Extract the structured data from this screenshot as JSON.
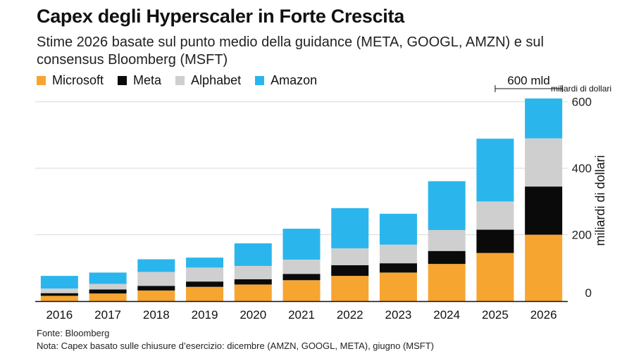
{
  "header": {
    "title": "Capex degli Hyperscaler in Forte Crescita",
    "subtitle": "Stime 2026 basate sul punto medio della guidance (META, GOOGL, AMZN) e sul consensus Bloomberg (MSFT)"
  },
  "footer": {
    "source": "Fonte: Bloomberg",
    "note": "Nota: Capex basato sulle chiusure d’esercizio: dicembre (AMZN, GOOGL, META), giugno (MSFT)"
  },
  "chart_data": {
    "type": "bar",
    "stacked": true,
    "categories": [
      "2016",
      "2017",
      "2018",
      "2019",
      "2020",
      "2021",
      "2022",
      "2023",
      "2024",
      "2025",
      "2026"
    ],
    "series": [
      {
        "name": "Microsoft",
        "color": "#f7a531",
        "values": [
          16,
          23,
          32,
          43,
          50,
          63,
          76,
          86,
          112,
          145,
          200
        ]
      },
      {
        "name": "Meta",
        "color": "#0a0a0a",
        "values": [
          8,
          12,
          14,
          16,
          16,
          19,
          32,
          28,
          39,
          70,
          145
        ]
      },
      {
        "name": "Alphabet",
        "color": "#cfcfcf",
        "values": [
          14,
          17,
          42,
          42,
          40,
          43,
          51,
          56,
          63,
          85,
          145
        ]
      },
      {
        "name": "Amazon",
        "color": "#2ab6ec",
        "values": [
          38,
          34,
          38,
          30,
          68,
          93,
          121,
          93,
          147,
          189,
          120
        ]
      }
    ],
    "ylim": [
      0,
      610
    ],
    "yticks": [
      0,
      200,
      400,
      600
    ],
    "ylabel": "miliardi di dollari",
    "ylabel_top": "miliardi di dollari",
    "annotation": {
      "text": "600 mld",
      "categories": [
        "2025",
        "2026"
      ],
      "value": 600
    },
    "legend_position": "top-left",
    "grid": true
  }
}
